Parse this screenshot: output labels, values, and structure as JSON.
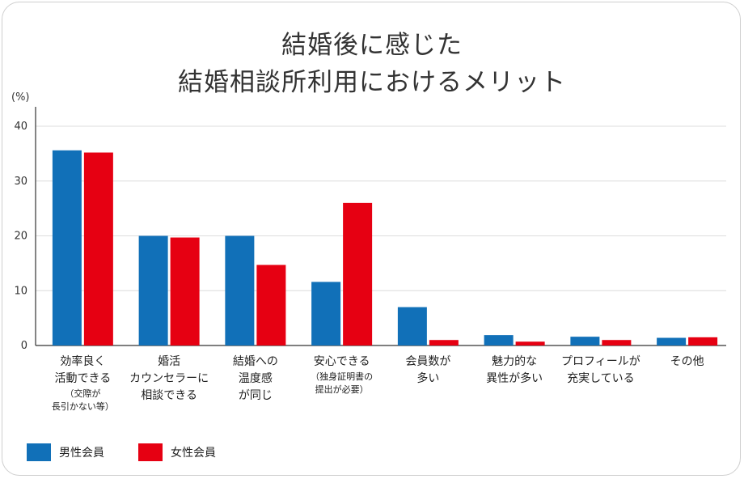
{
  "chart_data": {
    "type": "bar",
    "title_lines": [
      "結婚後に感じた",
      "結婚相談所利用におけるメリット"
    ],
    "y_unit": "(%)",
    "ylim": [
      0,
      40
    ],
    "yticks": [
      0,
      10,
      20,
      30,
      40
    ],
    "grid": true,
    "legend_position": "bottom-left",
    "categories": [
      {
        "lines": [
          "効率良く",
          "活動できる"
        ],
        "sub": [
          "（交際が",
          "長引かない等）"
        ]
      },
      {
        "lines": [
          "婚活",
          "カウンセラーに",
          "相談できる"
        ],
        "sub": []
      },
      {
        "lines": [
          "結婚への",
          "温度感",
          "が同じ"
        ],
        "sub": []
      },
      {
        "lines": [
          "安心できる"
        ],
        "sub": [
          "（独身証明書の",
          "提出が必要）"
        ]
      },
      {
        "lines": [
          "会員数が",
          "多い"
        ],
        "sub": []
      },
      {
        "lines": [
          "魅力的な",
          "異性が多い"
        ],
        "sub": []
      },
      {
        "lines": [
          "プロフィールが",
          "充実している"
        ],
        "sub": []
      },
      {
        "lines": [
          "その他"
        ],
        "sub": []
      }
    ],
    "series": [
      {
        "name": "男性会員",
        "color": "#1170b8",
        "values": [
          35.6,
          20.0,
          20.0,
          11.6,
          7.0,
          1.9,
          1.6,
          1.4
        ]
      },
      {
        "name": "女性会員",
        "color": "#e60012",
        "values": [
          35.2,
          19.7,
          14.7,
          26.0,
          1.0,
          0.7,
          1.0,
          1.5
        ]
      }
    ]
  }
}
